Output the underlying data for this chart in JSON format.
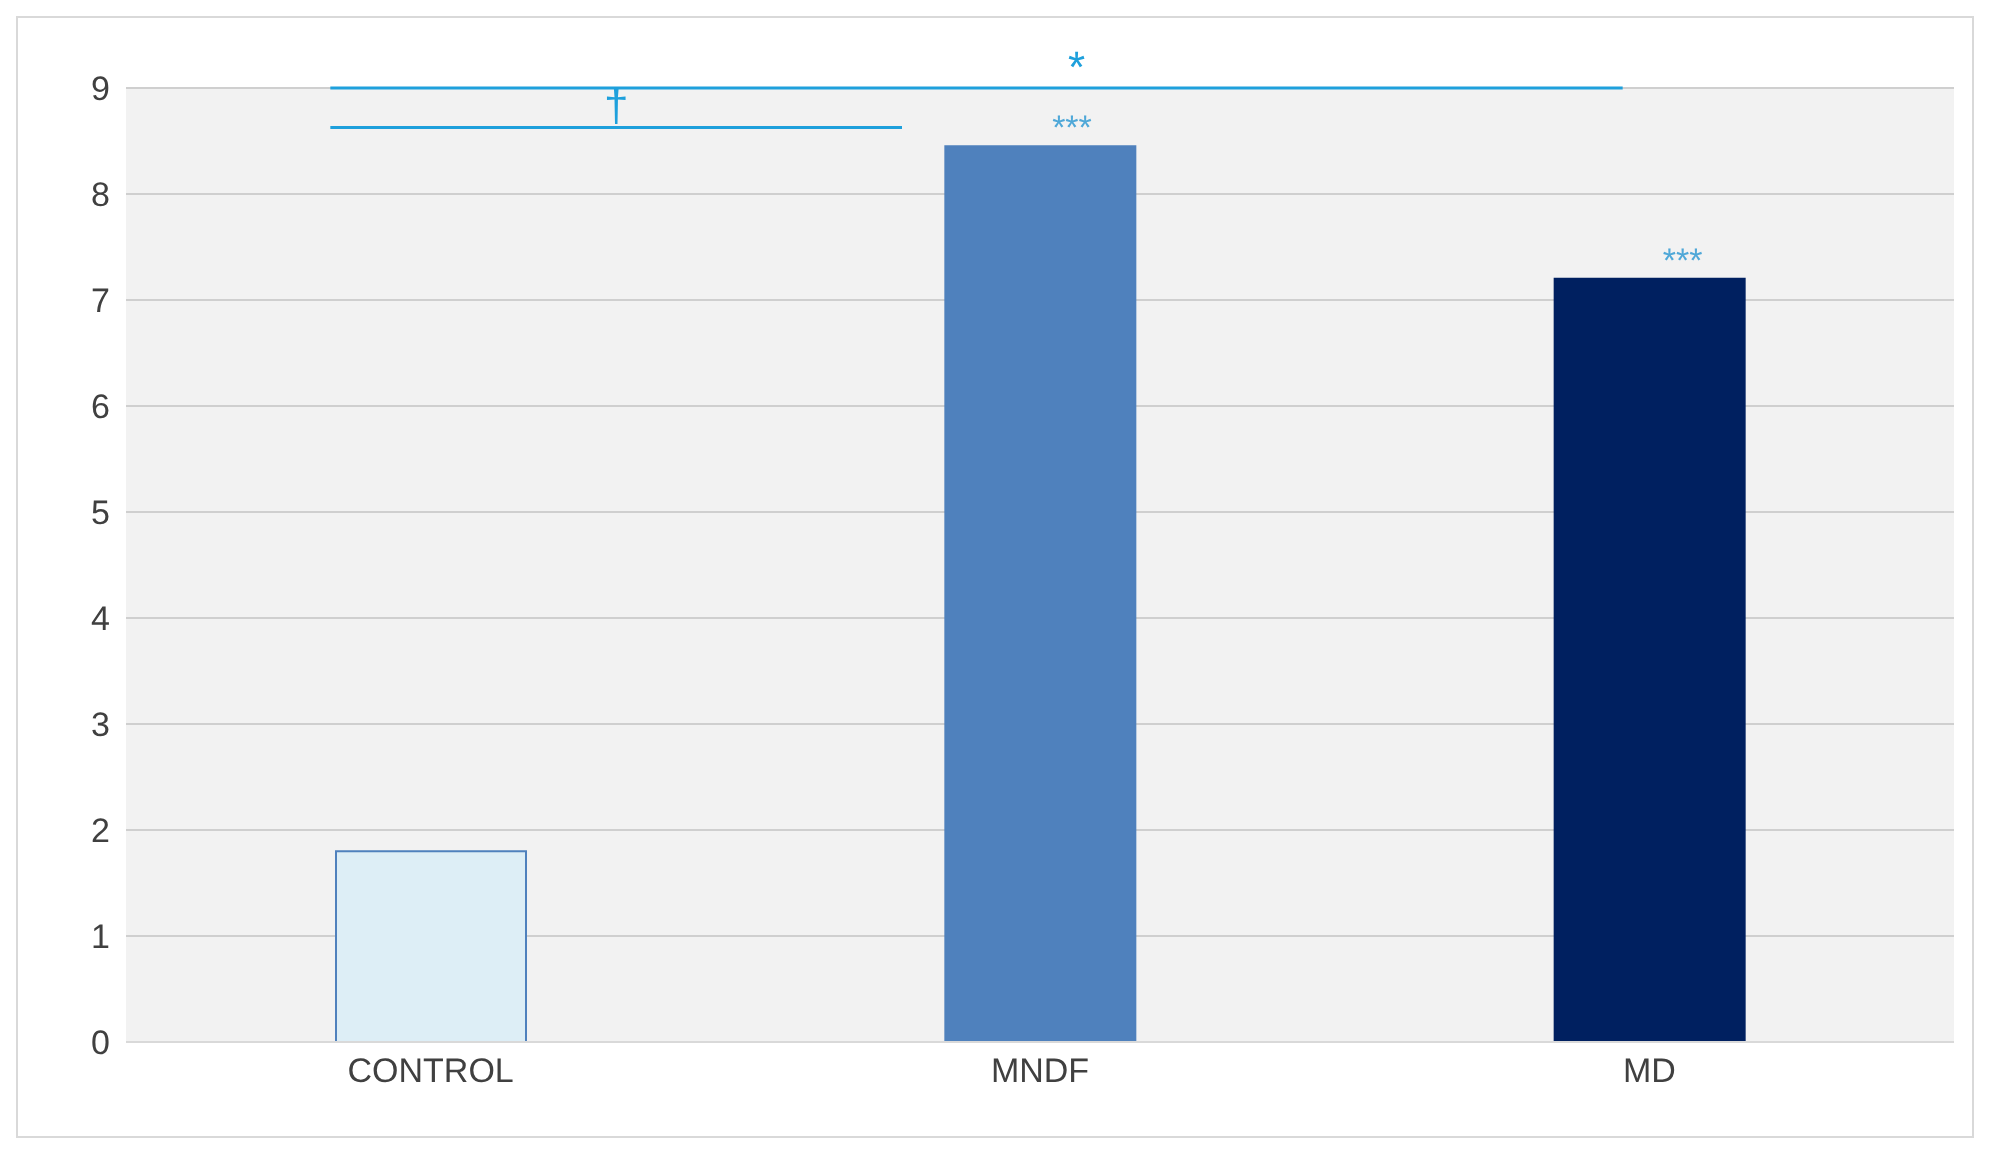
{
  "chart_data": {
    "type": "bar",
    "categories": [
      "CONTROL",
      "MNDF",
      "MD"
    ],
    "values": [
      1.8,
      8.45,
      7.2
    ],
    "colors": [
      "#ddeef6",
      "#4f81bd",
      "#002060"
    ],
    "ylim": [
      0,
      9
    ],
    "yticks": [
      0,
      1,
      2,
      3,
      4,
      5,
      6,
      7,
      8,
      9
    ],
    "grid": "y",
    "annotations": [
      "*",
      "†",
      {
        "text": "***",
        "x": "MNDF",
        "y": 8.45
      },
      {
        "text": "***",
        "x": "MD",
        "y": 7.2
      }
    ]
  }
}
